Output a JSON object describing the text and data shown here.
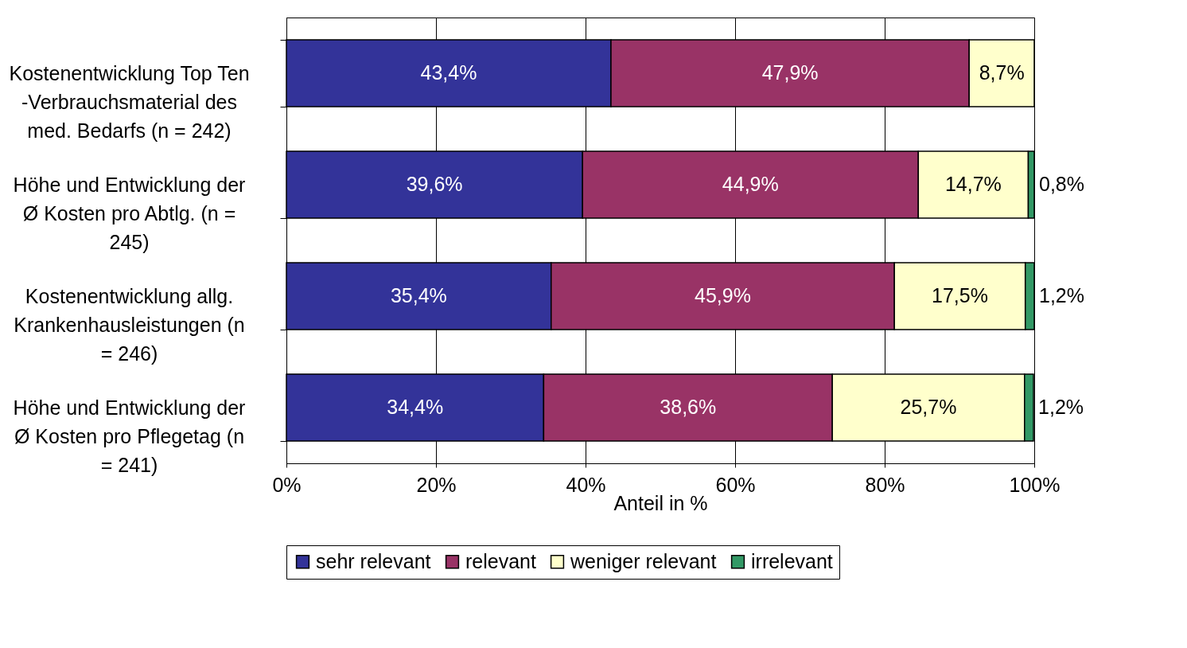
{
  "chart_data": {
    "type": "bar",
    "orientation": "horizontal",
    "stacked": true,
    "xlabel": "Anteil in %",
    "categories": [
      "Kostenentwicklung Top Ten -Verbrauchsmaterial des med. Bedarfs (n = 242)",
      "Höhe und Entwicklung der Ø Kosten pro Abtlg. (n = 245)",
      "Kostenentwicklung allg. Krankenhausleistungen (n = 246)",
      "Höhe und Entwicklung der Ø Kosten pro Pflegetag (n = 241)"
    ],
    "series": [
      {
        "name": "sehr relevant",
        "color": "#333399",
        "values": [
          43.4,
          39.6,
          35.4,
          34.4
        ],
        "value_labels": [
          "43,4%",
          "39,6%",
          "35,4%",
          "34,4%"
        ]
      },
      {
        "name": "relevant",
        "color": "#993366",
        "values": [
          47.9,
          44.9,
          45.9,
          38.6
        ],
        "value_labels": [
          "47,9%",
          "44,9%",
          "45,9%",
          "38,6%"
        ]
      },
      {
        "name": "weniger relevant",
        "color": "#ffffcc",
        "values": [
          8.7,
          14.7,
          17.5,
          25.7
        ],
        "value_labels": [
          "8,7%",
          "14,7%",
          "17,5%",
          "25,7%"
        ]
      },
      {
        "name": "irrelevant",
        "color": "#339966",
        "values": [
          null,
          0.8,
          1.2,
          1.2
        ],
        "value_labels": [
          null,
          "0,8%",
          "1,2%",
          "1,2%"
        ]
      }
    ],
    "xlim": [
      0,
      100
    ],
    "xticks": [
      {
        "value": 0,
        "label": "0%"
      },
      {
        "value": 20,
        "label": "20%"
      },
      {
        "value": 40,
        "label": "40%"
      },
      {
        "value": 60,
        "label": "60%"
      },
      {
        "value": 80,
        "label": "80%"
      },
      {
        "value": 100,
        "label": "100%"
      }
    ],
    "grid": "x",
    "legend": "bottom"
  }
}
